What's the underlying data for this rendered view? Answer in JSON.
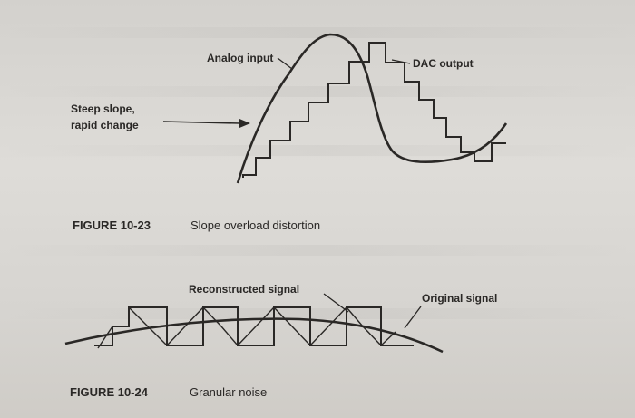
{
  "figure_23": {
    "label_analog": "Analog input",
    "label_dac": "DAC output",
    "label_slope_line1": "Steep slope,",
    "label_slope_line2": "rapid change",
    "caption_number": "FIGURE 10-23",
    "caption_text": "Slope overload distortion"
  },
  "figure_24": {
    "label_reconstructed": "Reconstructed signal",
    "label_original": "Original signal",
    "caption_number": "FIGURE 10-24",
    "caption_text": "Granular noise"
  },
  "colors": {
    "ink": "#2a2826",
    "paper": "#dad8d4"
  }
}
